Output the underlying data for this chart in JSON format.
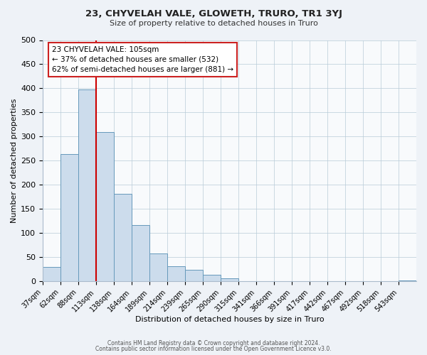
{
  "title": "23, CHYVELAH VALE, GLOWETH, TRURO, TR1 3YJ",
  "subtitle": "Size of property relative to detached houses in Truro",
  "xlabel": "Distribution of detached houses by size in Truro",
  "ylabel": "Number of detached properties",
  "bin_labels": [
    "37sqm",
    "62sqm",
    "88sqm",
    "113sqm",
    "138sqm",
    "164sqm",
    "189sqm",
    "214sqm",
    "239sqm",
    "265sqm",
    "290sqm",
    "315sqm",
    "341sqm",
    "366sqm",
    "391sqm",
    "417sqm",
    "442sqm",
    "467sqm",
    "492sqm",
    "518sqm",
    "543sqm"
  ],
  "bar_values": [
    29,
    264,
    397,
    309,
    181,
    117,
    58,
    31,
    24,
    14,
    6,
    1,
    0,
    0,
    0,
    0,
    0,
    0,
    0,
    0,
    2
  ],
  "bar_color": "#ccdcec",
  "bar_edge_color": "#6699bb",
  "vline_x": 3.0,
  "vline_color": "#cc0000",
  "ylim": [
    0,
    500
  ],
  "yticks": [
    0,
    50,
    100,
    150,
    200,
    250,
    300,
    350,
    400,
    450,
    500
  ],
  "ann_line1": "23 CHYVELAH VALE: 105sqm",
  "ann_line2": "← 37% of detached houses are smaller (532)",
  "ann_line3": "62% of semi-detached houses are larger (881) →",
  "footer_line1": "Contains HM Land Registry data © Crown copyright and database right 2024.",
  "footer_line2": "Contains public sector information licensed under the Open Government Licence v3.0.",
  "background_color": "#eef2f7",
  "plot_bg_color": "#f8fafc",
  "grid_color": "#b8ccd8",
  "ann_box_facecolor": "#ffffff",
  "ann_box_edgecolor": "#cc2222"
}
